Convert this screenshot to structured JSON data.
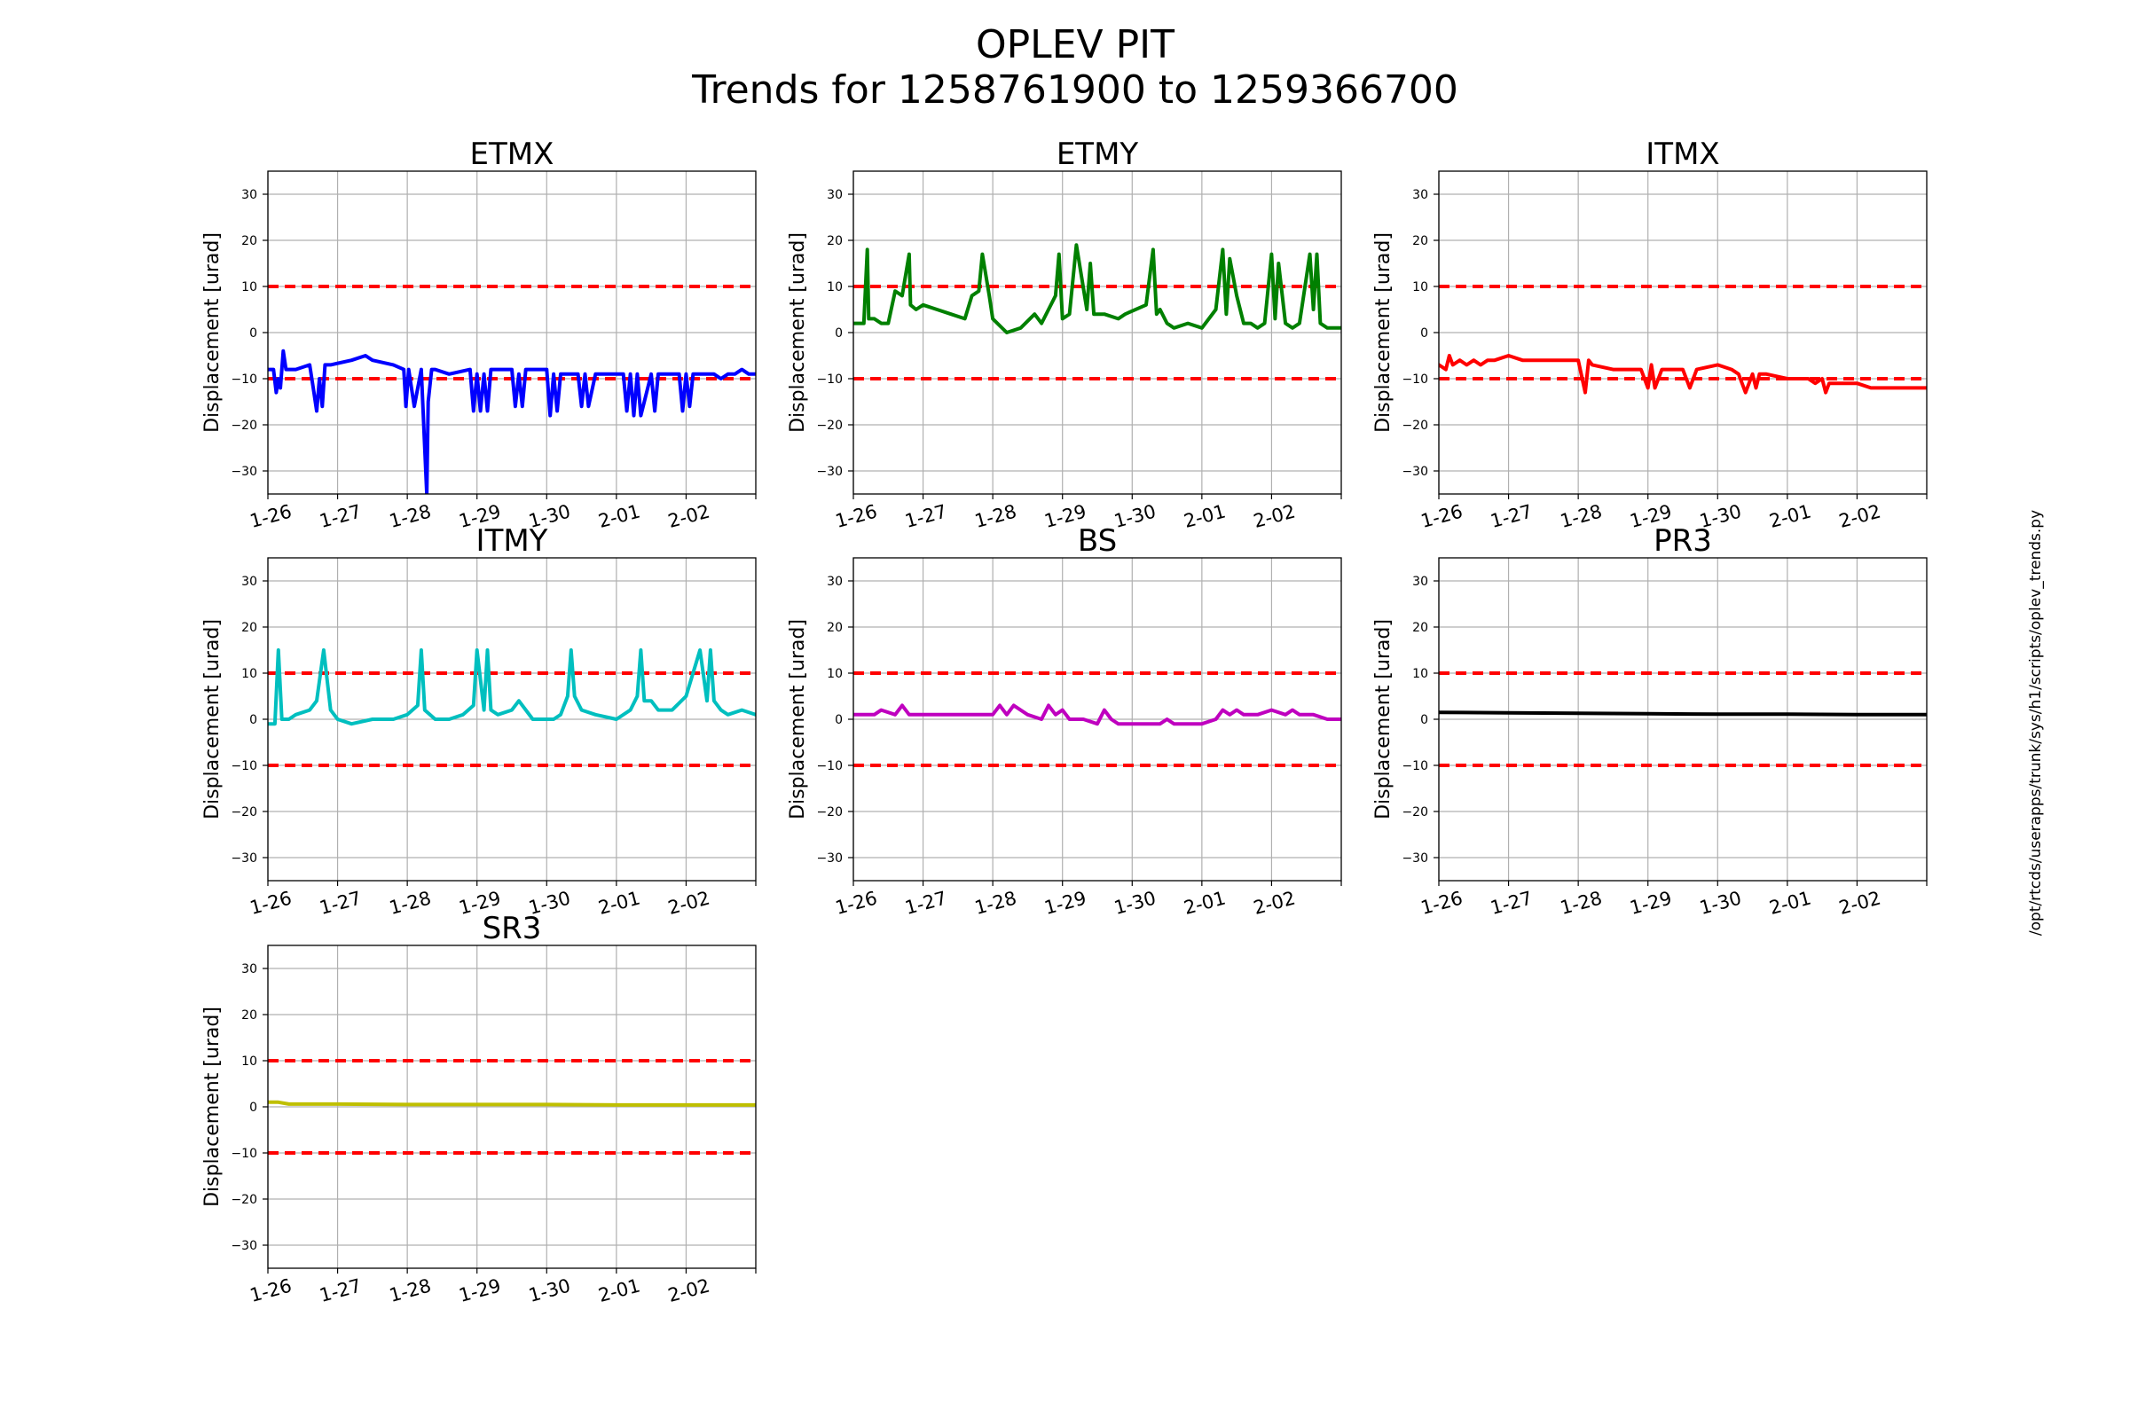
{
  "figure": {
    "title_line1": "OPLEV PIT",
    "title_line2": "Trends for 1258761900 to 1259366700",
    "side_label": "/opt/rtcds/userapps/trunk/sys/h1/scripts/oplev_trends.py"
  },
  "chart_data": [
    {
      "type": "line",
      "title": "ETMX",
      "ylabel": "Displacement [urad]",
      "xlim": [
        0,
        7
      ],
      "ylim": [
        -35,
        35
      ],
      "yticks": [
        -30,
        -20,
        -10,
        0,
        10,
        20,
        30
      ],
      "xticks": [
        0,
        1,
        2,
        3,
        4,
        5,
        6
      ],
      "xtick_labels": [
        "1-26",
        "1-27",
        "1-28",
        "1-29",
        "1-30",
        "2-01",
        "2-02"
      ],
      "thresholds": [
        10,
        -10
      ],
      "color": "#0000ff",
      "grid": true,
      "x": [
        0,
        0.08,
        0.12,
        0.15,
        0.18,
        0.22,
        0.26,
        0.3,
        0.4,
        0.6,
        0.66,
        0.7,
        0.74,
        0.78,
        0.82,
        0.9,
        1.2,
        1.4,
        1.5,
        1.8,
        1.95,
        1.98,
        2.02,
        2.1,
        2.2,
        2.28,
        2.3,
        2.35,
        2.4,
        2.6,
        2.9,
        2.95,
        3.0,
        3.05,
        3.1,
        3.15,
        3.2,
        3.5,
        3.55,
        3.6,
        3.65,
        3.7,
        3.8,
        4.0,
        4.05,
        4.1,
        4.15,
        4.2,
        4.3,
        4.45,
        4.5,
        4.55,
        4.6,
        4.7,
        5.1,
        5.15,
        5.2,
        5.25,
        5.3,
        5.35,
        5.5,
        5.55,
        5.6,
        5.7,
        5.9,
        5.95,
        6.0,
        6.05,
        6.1,
        6.2,
        6.4,
        6.5,
        6.6,
        6.7,
        6.8,
        6.9,
        7.0
      ],
      "y": [
        -8,
        -8,
        -13,
        -10,
        -12,
        -4,
        -8,
        -8,
        -8,
        -7,
        -13,
        -17,
        -10,
        -16,
        -7,
        -7,
        -6,
        -5,
        -6,
        -7,
        -8,
        -16,
        -8,
        -16,
        -8,
        -35,
        -15,
        -8,
        -8,
        -9,
        -8,
        -17,
        -9,
        -17,
        -9,
        -17,
        -8,
        -8,
        -16,
        -9,
        -16,
        -8,
        -8,
        -8,
        -18,
        -9,
        -17,
        -9,
        -9,
        -9,
        -16,
        -9,
        -16,
        -9,
        -9,
        -17,
        -9,
        -18,
        -9,
        -18,
        -9,
        -17,
        -9,
        -9,
        -9,
        -17,
        -9,
        -16,
        -9,
        -9,
        -9,
        -10,
        -9,
        -9,
        -8,
        -9,
        -9
      ]
    },
    {
      "type": "line",
      "title": "ETMY",
      "ylabel": "Displacement [urad]",
      "xlim": [
        0,
        7
      ],
      "ylim": [
        -35,
        35
      ],
      "yticks": [
        -30,
        -20,
        -10,
        0,
        10,
        20,
        30
      ],
      "xticks": [
        0,
        1,
        2,
        3,
        4,
        5,
        6
      ],
      "xtick_labels": [
        "1-26",
        "1-27",
        "1-28",
        "1-29",
        "1-30",
        "2-01",
        "2-02"
      ],
      "thresholds": [
        10,
        -10
      ],
      "color": "#008000",
      "grid": true,
      "x": [
        0,
        0.15,
        0.2,
        0.22,
        0.3,
        0.4,
        0.5,
        0.6,
        0.7,
        0.8,
        0.82,
        0.9,
        1.0,
        1.2,
        1.4,
        1.6,
        1.7,
        1.8,
        1.85,
        1.95,
        2.0,
        2.2,
        2.4,
        2.6,
        2.7,
        2.9,
        2.95,
        3.0,
        3.1,
        3.2,
        3.35,
        3.4,
        3.45,
        3.6,
        3.8,
        3.9,
        4.2,
        4.3,
        4.35,
        4.4,
        4.5,
        4.6,
        4.8,
        5.0,
        5.2,
        5.3,
        5.35,
        5.4,
        5.5,
        5.6,
        5.7,
        5.8,
        5.9,
        6.0,
        6.05,
        6.1,
        6.2,
        6.3,
        6.4,
        6.55,
        6.6,
        6.65,
        6.7,
        6.8,
        7.0
      ],
      "y": [
        2,
        2,
        18,
        3,
        3,
        2,
        2,
        9,
        8,
        17,
        6,
        5,
        6,
        5,
        4,
        3,
        8,
        9,
        17,
        8,
        3,
        0,
        1,
        4,
        2,
        8,
        17,
        3,
        4,
        19,
        5,
        15,
        4,
        4,
        3,
        4,
        6,
        18,
        4,
        5,
        2,
        1,
        2,
        1,
        5,
        18,
        4,
        16,
        8,
        2,
        2,
        1,
        2,
        17,
        3,
        15,
        2,
        1,
        2,
        17,
        5,
        17,
        2,
        1,
        1
      ]
    },
    {
      "type": "line",
      "title": "ITMX",
      "ylabel": "Displacement [urad]",
      "xlim": [
        0,
        7
      ],
      "ylim": [
        -35,
        35
      ],
      "yticks": [
        -30,
        -20,
        -10,
        0,
        10,
        20,
        30
      ],
      "xticks": [
        0,
        1,
        2,
        3,
        4,
        5,
        6
      ],
      "xtick_labels": [
        "1-26",
        "1-27",
        "1-28",
        "1-29",
        "1-30",
        "2-01",
        "2-02"
      ],
      "thresholds": [
        10,
        -10
      ],
      "color": "#ff0000",
      "grid": true,
      "x": [
        0,
        0.1,
        0.15,
        0.2,
        0.3,
        0.4,
        0.5,
        0.6,
        0.7,
        0.8,
        1.0,
        1.2,
        1.5,
        1.8,
        2.0,
        2.1,
        2.15,
        2.2,
        2.5,
        2.9,
        3.0,
        3.05,
        3.1,
        3.2,
        3.3,
        3.5,
        3.6,
        3.7,
        4.0,
        4.2,
        4.3,
        4.4,
        4.5,
        4.55,
        4.6,
        4.7,
        5.0,
        5.3,
        5.4,
        5.5,
        5.55,
        5.6,
        5.8,
        6.0,
        6.2,
        6.4,
        6.6,
        6.8,
        7.0
      ],
      "y": [
        -7,
        -8,
        -5,
        -7,
        -6,
        -7,
        -6,
        -7,
        -6,
        -6,
        -5,
        -6,
        -6,
        -6,
        -6,
        -13,
        -6,
        -7,
        -8,
        -8,
        -12,
        -7,
        -12,
        -8,
        -8,
        -8,
        -12,
        -8,
        -7,
        -8,
        -9,
        -13,
        -9,
        -12,
        -9,
        -9,
        -10,
        -10,
        -11,
        -10,
        -13,
        -11,
        -11,
        -11,
        -12,
        -12,
        -12,
        -12,
        -12
      ]
    },
    {
      "type": "line",
      "title": "ITMY",
      "ylabel": "Displacement [urad]",
      "xlim": [
        0,
        7
      ],
      "ylim": [
        -35,
        35
      ],
      "yticks": [
        -30,
        -20,
        -10,
        0,
        10,
        20,
        30
      ],
      "xticks": [
        0,
        1,
        2,
        3,
        4,
        5,
        6
      ],
      "xtick_labels": [
        "1-26",
        "1-27",
        "1-28",
        "1-29",
        "1-30",
        "2-01",
        "2-02"
      ],
      "thresholds": [
        10,
        -10
      ],
      "color": "#00bfbf",
      "grid": true,
      "x": [
        0,
        0.1,
        0.15,
        0.2,
        0.3,
        0.4,
        0.6,
        0.7,
        0.8,
        0.9,
        1.0,
        1.2,
        1.5,
        1.8,
        2.0,
        2.15,
        2.2,
        2.25,
        2.4,
        2.6,
        2.8,
        2.95,
        3.0,
        3.1,
        3.15,
        3.2,
        3.3,
        3.5,
        3.6,
        3.8,
        4.1,
        4.2,
        4.3,
        4.35,
        4.4,
        4.5,
        4.7,
        5.0,
        5.2,
        5.3,
        5.35,
        5.4,
        5.5,
        5.6,
        5.8,
        6.0,
        6.2,
        6.3,
        6.35,
        6.4,
        6.5,
        6.6,
        6.8,
        7.0
      ],
      "y": [
        -1,
        -1,
        15,
        0,
        0,
        1,
        2,
        4,
        15,
        2,
        0,
        -1,
        0,
        0,
        1,
        3,
        15,
        2,
        0,
        0,
        1,
        3,
        15,
        2,
        15,
        2,
        1,
        2,
        4,
        0,
        0,
        1,
        5,
        15,
        5,
        2,
        1,
        0,
        2,
        5,
        15,
        4,
        4,
        2,
        2,
        5,
        15,
        4,
        15,
        4,
        2,
        1,
        2,
        1
      ]
    },
    {
      "type": "line",
      "title": "BS",
      "ylabel": "Displacement [urad]",
      "xlim": [
        0,
        7
      ],
      "ylim": [
        -35,
        35
      ],
      "yticks": [
        -30,
        -20,
        -10,
        0,
        10,
        20,
        30
      ],
      "xticks": [
        0,
        1,
        2,
        3,
        4,
        5,
        6
      ],
      "xtick_labels": [
        "1-26",
        "1-27",
        "1-28",
        "1-29",
        "1-30",
        "2-01",
        "2-02"
      ],
      "thresholds": [
        10,
        -10
      ],
      "color": "#bf00bf",
      "grid": true,
      "x": [
        0,
        0.1,
        0.2,
        0.3,
        0.4,
        0.6,
        0.7,
        0.8,
        1.0,
        1.5,
        2.0,
        2.1,
        2.2,
        2.3,
        2.5,
        2.7,
        2.8,
        2.9,
        3.0,
        3.1,
        3.3,
        3.5,
        3.6,
        3.7,
        3.8,
        4.0,
        4.2,
        4.4,
        4.5,
        4.6,
        4.8,
        5.0,
        5.2,
        5.3,
        5.4,
        5.5,
        5.6,
        5.8,
        6.0,
        6.2,
        6.3,
        6.4,
        6.6,
        6.8,
        7.0
      ],
      "y": [
        1,
        1,
        1,
        1,
        2,
        1,
        3,
        1,
        1,
        1,
        1,
        3,
        1,
        3,
        1,
        0,
        3,
        1,
        2,
        0,
        0,
        -1,
        2,
        0,
        -1,
        -1,
        -1,
        -1,
        0,
        -1,
        -1,
        -1,
        0,
        2,
        1,
        2,
        1,
        1,
        2,
        1,
        2,
        1,
        1,
        0,
        0
      ]
    },
    {
      "type": "line",
      "title": "PR3",
      "ylabel": "Displacement [urad]",
      "xlim": [
        0,
        7
      ],
      "ylim": [
        -35,
        35
      ],
      "yticks": [
        -30,
        -20,
        -10,
        0,
        10,
        20,
        30
      ],
      "xticks": [
        0,
        1,
        2,
        3,
        4,
        5,
        6
      ],
      "xtick_labels": [
        "1-26",
        "1-27",
        "1-28",
        "1-29",
        "1-30",
        "2-01",
        "2-02"
      ],
      "thresholds": [
        10,
        -10
      ],
      "color": "#000000",
      "grid": true,
      "x": [
        0,
        1,
        2,
        3,
        4,
        5,
        6,
        7
      ],
      "y": [
        1.5,
        1.4,
        1.3,
        1.2,
        1.1,
        1.1,
        1.0,
        1.0
      ]
    },
    {
      "type": "line",
      "title": "SR3",
      "ylabel": "Displacement [urad]",
      "xlim": [
        0,
        7
      ],
      "ylim": [
        -35,
        35
      ],
      "yticks": [
        -30,
        -20,
        -10,
        0,
        10,
        20,
        30
      ],
      "xticks": [
        0,
        1,
        2,
        3,
        4,
        5,
        6
      ],
      "xtick_labels": [
        "1-26",
        "1-27",
        "1-28",
        "1-29",
        "1-30",
        "2-01",
        "2-02"
      ],
      "thresholds": [
        10,
        -10
      ],
      "color": "#bfbf00",
      "grid": true,
      "x": [
        0,
        0.15,
        0.3,
        1,
        2,
        3,
        4,
        5,
        6,
        7
      ],
      "y": [
        1,
        1,
        0.6,
        0.6,
        0.5,
        0.5,
        0.5,
        0.4,
        0.4,
        0.4
      ]
    }
  ]
}
